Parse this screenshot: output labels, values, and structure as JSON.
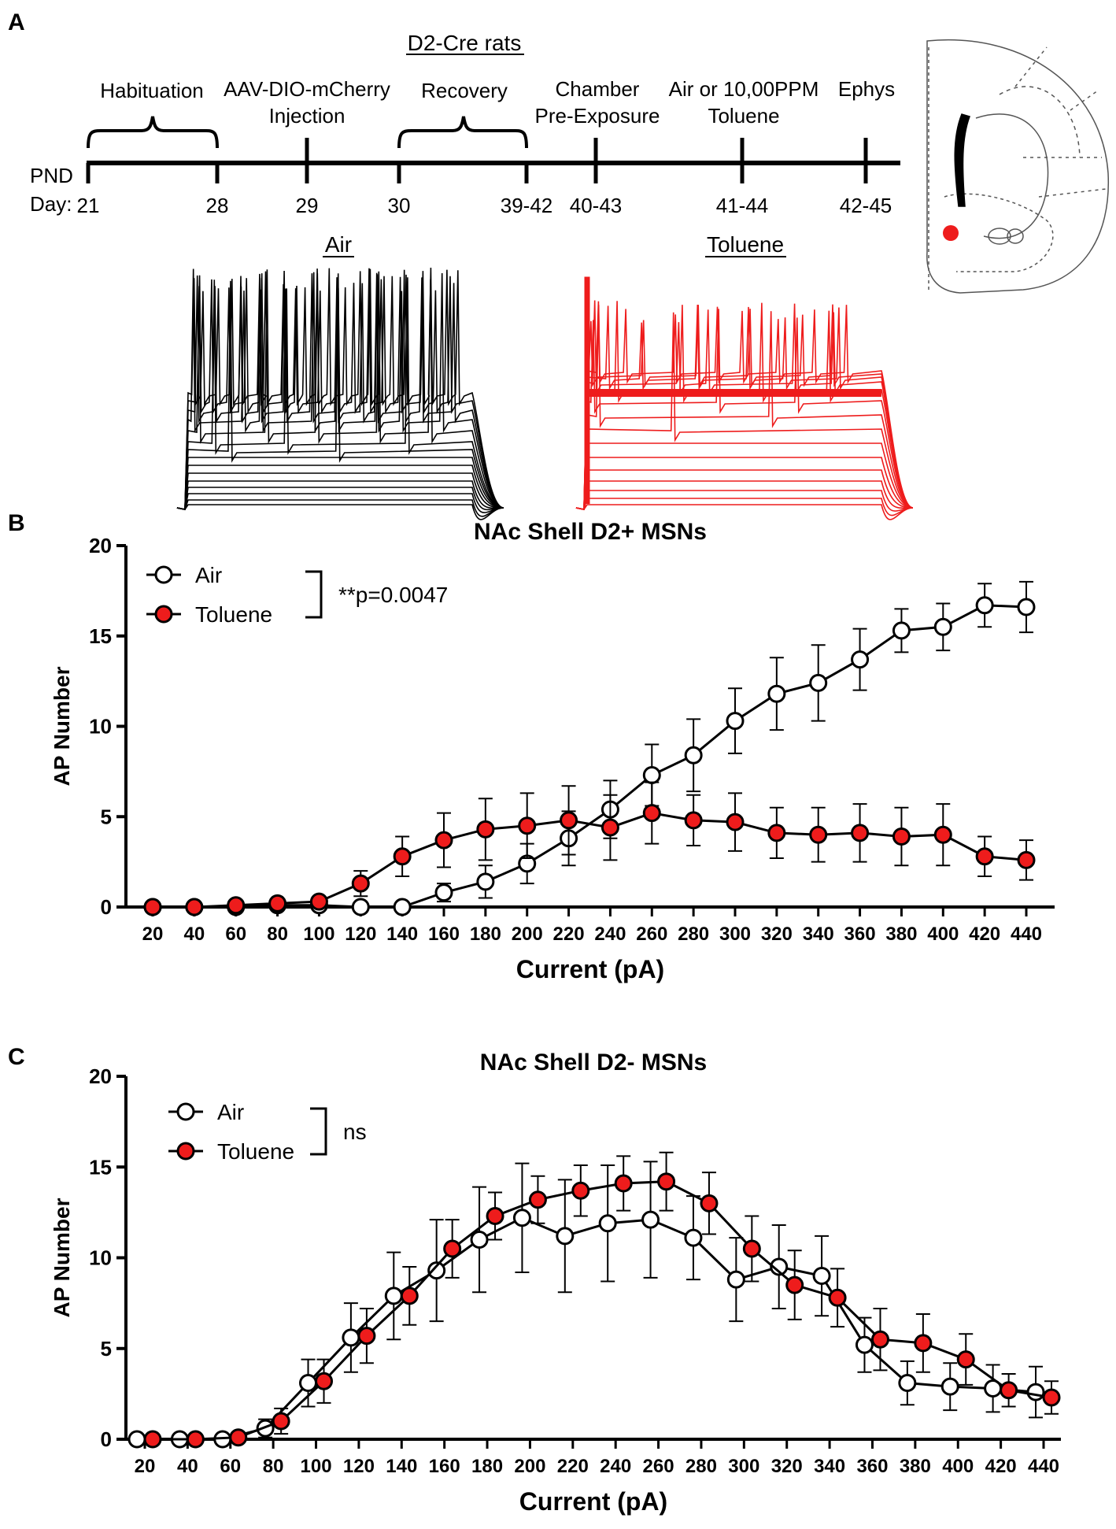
{
  "colors": {
    "air": "#000000",
    "toluene": "#ee1c1c",
    "axis": "#000000"
  },
  "panel_labels": [
    "A",
    "B",
    "C"
  ],
  "timeline": {
    "title": "D2-Cre rats",
    "axis_label_1": "PND",
    "axis_label_2": "Day:",
    "events": [
      {
        "label_1": "Habituation",
        "label_2": ""
      },
      {
        "label_1": "AAV-DIO-mCherry",
        "label_2": "Injection"
      },
      {
        "label_1": "Recovery",
        "label_2": ""
      },
      {
        "label_1": "Chamber",
        "label_2": "Pre-Exposure"
      },
      {
        "label_1": "Air or 10,00PPM",
        "label_2": "Toluene"
      },
      {
        "label_1": "Ephys",
        "label_2": ""
      }
    ],
    "days": [
      "21",
      "28",
      "29",
      "30",
      "39-42",
      "40-43",
      "41-44",
      "42-45"
    ]
  },
  "brain_section": {
    "marker_color": "#ee1c1c"
  },
  "traces": {
    "air_label": "Air",
    "toluene_label": "Toluene"
  },
  "chart_data": [
    {
      "type": "line",
      "title": "NAc Shell D2+ MSNs",
      "xlabel": "Current (pA)",
      "ylabel": "AP Number",
      "ylim": [
        0,
        20
      ],
      "yticks": [
        0,
        5,
        10,
        15,
        20
      ],
      "x": [
        20,
        40,
        60,
        80,
        100,
        120,
        140,
        160,
        180,
        200,
        220,
        240,
        260,
        280,
        300,
        320,
        340,
        360,
        380,
        400,
        420,
        440
      ],
      "series": [
        {
          "name": "Air",
          "values": [
            0,
            0,
            0,
            0.1,
            0.1,
            0,
            0,
            0.8,
            1.4,
            2.4,
            3.8,
            5.4,
            7.3,
            8.4,
            10.3,
            11.8,
            12.4,
            13.7,
            15.3,
            15.5,
            16.7,
            16.6
          ],
          "errors": [
            0,
            0,
            0,
            0,
            0,
            0,
            0,
            0.5,
            0.9,
            1.1,
            1.5,
            1.6,
            1.7,
            2.0,
            1.8,
            2.0,
            2.1,
            1.7,
            1.2,
            1.3,
            1.2,
            1.4
          ]
        },
        {
          "name": "Toluene",
          "values": [
            0,
            0,
            0.1,
            0.2,
            0.3,
            1.3,
            2.8,
            3.7,
            4.3,
            4.5,
            4.8,
            4.4,
            5.2,
            4.8,
            4.7,
            4.1,
            4.0,
            4.1,
            3.9,
            4.0,
            2.8,
            2.6
          ],
          "errors": [
            0,
            0,
            0,
            0,
            0,
            0.7,
            1.1,
            1.5,
            1.7,
            1.8,
            1.9,
            1.8,
            1.7,
            1.4,
            1.6,
            1.4,
            1.5,
            1.6,
            1.6,
            1.7,
            1.1,
            1.1
          ]
        }
      ],
      "legend": "top-left",
      "annotation": "**p=0.0047"
    },
    {
      "type": "line",
      "title": "NAc Shell D2- MSNs",
      "xlabel": "Current (pA)",
      "ylabel": "AP Number",
      "ylim": [
        0,
        20
      ],
      "yticks": [
        0,
        5,
        10,
        15,
        20
      ],
      "x": [
        20,
        40,
        60,
        80,
        100,
        120,
        140,
        160,
        180,
        200,
        220,
        240,
        260,
        280,
        300,
        320,
        340,
        360,
        380,
        400,
        420,
        440
      ],
      "series": [
        {
          "name": "Air",
          "values": [
            0,
            0,
            0,
            0.6,
            3.1,
            5.6,
            7.9,
            9.3,
            11.0,
            12.2,
            11.2,
            11.9,
            12.1,
            11.1,
            8.8,
            9.5,
            9.0,
            5.2,
            3.1,
            2.9,
            2.8,
            2.6
          ],
          "errors": [
            0,
            0,
            0,
            0.5,
            1.3,
            1.9,
            2.4,
            2.8,
            2.9,
            3.0,
            3.1,
            3.2,
            3.2,
            2.3,
            2.3,
            2.3,
            2.2,
            1.5,
            1.2,
            1.3,
            1.3,
            1.4
          ]
        },
        {
          "name": "Toluene",
          "values": [
            0,
            0,
            0.1,
            1.0,
            3.2,
            5.7,
            7.9,
            10.5,
            12.3,
            13.2,
            13.7,
            14.1,
            14.2,
            13.0,
            10.5,
            8.5,
            7.8,
            5.5,
            5.3,
            4.4,
            2.7,
            2.3
          ],
          "errors": [
            0,
            0,
            0,
            0.7,
            1.2,
            1.5,
            1.6,
            1.6,
            1.3,
            1.3,
            1.4,
            1.5,
            1.6,
            1.7,
            1.8,
            1.9,
            1.6,
            1.7,
            1.6,
            1.4,
            0.9,
            0.9
          ]
        }
      ],
      "legend": "top-left",
      "annotation": "ns"
    }
  ]
}
